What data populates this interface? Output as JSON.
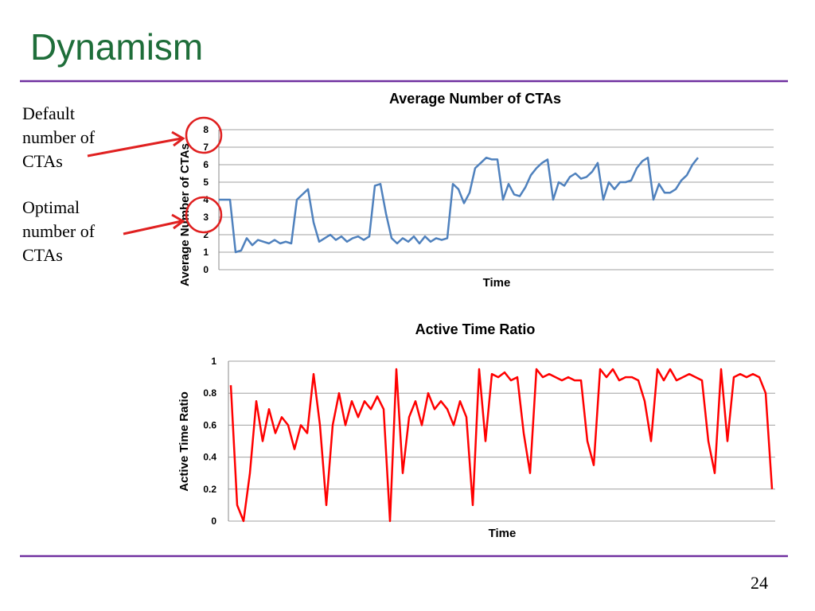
{
  "slide": {
    "title": "Dynamism",
    "annotations": [
      "Default number of CTAs",
      "Optimal number of CTAs"
    ],
    "page_number": "24"
  },
  "chart_data": [
    {
      "type": "line",
      "title": "Average Number of CTAs",
      "x_label": "Time",
      "y_label": "Average Number of CTAs",
      "ylim": [
        0,
        8
      ],
      "yticks": [
        0,
        1,
        2,
        3,
        4,
        5,
        6,
        7,
        8
      ],
      "grid": true,
      "series": [
        {
          "name": "Average Number of CTAs",
          "color": "#4f81bd",
          "values": [
            4.0,
            4.0,
            4.0,
            1.0,
            1.1,
            1.8,
            1.4,
            1.7,
            1.6,
            1.5,
            1.7,
            1.5,
            1.6,
            1.5,
            4.0,
            4.3,
            4.6,
            2.7,
            1.6,
            1.8,
            2.0,
            1.7,
            1.9,
            1.6,
            1.8,
            1.9,
            1.7,
            1.9,
            4.8,
            4.9,
            3.2,
            1.8,
            1.5,
            1.8,
            1.6,
            1.9,
            1.5,
            1.9,
            1.6,
            1.8,
            1.7,
            1.8,
            4.9,
            4.6,
            3.8,
            4.4,
            5.8,
            6.1,
            6.4,
            6.3,
            6.3,
            4.0,
            4.9,
            4.3,
            4.2,
            4.7,
            5.4,
            5.8,
            6.1,
            6.3,
            4.0,
            5.0,
            4.8,
            5.3,
            5.5,
            5.2,
            5.3,
            5.6,
            6.1,
            4.0,
            5.0,
            4.6,
            5.0,
            5.0,
            5.1,
            5.8,
            6.2,
            6.4,
            4.0,
            4.9,
            4.4,
            4.4,
            4.6,
            5.1,
            5.4,
            6.0,
            6.4
          ]
        }
      ]
    },
    {
      "type": "line",
      "title": "Active Time Ratio",
      "x_label": "Time",
      "y_label": "Active Time Ratio",
      "ylim": [
        0,
        1
      ],
      "yticks": [
        0,
        0.2,
        0.4,
        0.6,
        0.8,
        1
      ],
      "grid": true,
      "series": [
        {
          "name": "Active Time Ratio",
          "color": "#ff0000",
          "values": [
            0.85,
            0.1,
            0.0,
            0.3,
            0.75,
            0.5,
            0.7,
            0.55,
            0.65,
            0.6,
            0.45,
            0.6,
            0.55,
            0.92,
            0.6,
            0.1,
            0.6,
            0.8,
            0.6,
            0.75,
            0.65,
            0.75,
            0.7,
            0.78,
            0.7,
            0.0,
            0.95,
            0.3,
            0.65,
            0.75,
            0.6,
            0.8,
            0.7,
            0.75,
            0.7,
            0.6,
            0.75,
            0.65,
            0.1,
            0.95,
            0.5,
            0.92,
            0.9,
            0.93,
            0.88,
            0.9,
            0.55,
            0.3,
            0.95,
            0.9,
            0.92,
            0.9,
            0.88,
            0.9,
            0.88,
            0.88,
            0.5,
            0.35,
            0.95,
            0.9,
            0.95,
            0.88,
            0.9,
            0.9,
            0.88,
            0.75,
            0.5,
            0.95,
            0.88,
            0.95,
            0.88,
            0.9,
            0.92,
            0.9,
            0.88,
            0.5,
            0.3,
            0.95,
            0.5,
            0.9,
            0.92,
            0.9,
            0.92,
            0.9,
            0.8,
            0.2
          ]
        }
      ]
    }
  ]
}
